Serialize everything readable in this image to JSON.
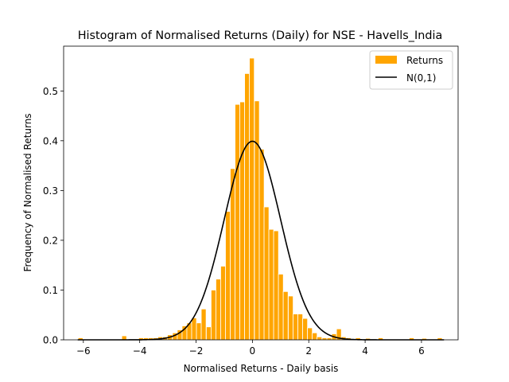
{
  "chart_data": {
    "type": "bar",
    "title": "Histogram of Normalised Returns (Daily) for NSE - Havells_India",
    "xlabel": "Normalised Returns - Daily basis",
    "ylabel": "Frequency of Normalised Returns",
    "xlim": [
      -6.7,
      7.3
    ],
    "ylim": [
      0,
      0.59
    ],
    "xticks": [
      -6,
      -4,
      -2,
      0,
      2,
      4,
      6
    ],
    "yticks": [
      0.0,
      0.1,
      0.2,
      0.3,
      0.4,
      0.5
    ],
    "grid": false,
    "legend_position": "top-right",
    "bar_color": "#ffa500",
    "bar_edge_color": "#ffffff",
    "line_color": "#000000",
    "bin_width": 0.172,
    "series": [
      {
        "name": "Returns",
        "type": "histogram",
        "bin_centers": [
          -6.1,
          -4.55,
          -3.95,
          -3.78,
          -3.61,
          -3.44,
          -3.27,
          -3.1,
          -2.93,
          -2.75,
          -2.58,
          -2.41,
          -2.24,
          -2.07,
          -1.9,
          -1.73,
          -1.55,
          -1.38,
          -1.21,
          -1.04,
          -0.87,
          -0.7,
          -0.53,
          -0.36,
          -0.19,
          -0.02,
          0.16,
          0.33,
          0.5,
          0.67,
          0.84,
          1.01,
          1.18,
          1.36,
          1.53,
          1.7,
          1.87,
          2.04,
          2.21,
          2.38,
          2.56,
          2.73,
          2.9,
          3.07,
          3.24,
          3.41,
          3.75,
          4.1,
          4.55,
          5.65,
          6.1,
          6.65
        ],
        "values": [
          0.004,
          0.008,
          0.004,
          0.004,
          0.004,
          0.004,
          0.006,
          0.006,
          0.01,
          0.014,
          0.02,
          0.028,
          0.034,
          0.044,
          0.034,
          0.062,
          0.026,
          0.1,
          0.122,
          0.148,
          0.258,
          0.344,
          0.473,
          0.478,
          0.535,
          0.566,
          0.48,
          0.383,
          0.267,
          0.222,
          0.219,
          0.132,
          0.097,
          0.088,
          0.052,
          0.052,
          0.043,
          0.024,
          0.014,
          0.006,
          0.004,
          0.004,
          0.012,
          0.022,
          0.006,
          0.004,
          0.004,
          0.003,
          0.004,
          0.004,
          0.003,
          0.004
        ]
      },
      {
        "name": "N(0,1)",
        "type": "line",
        "function": "normal_pdf",
        "mean": 0,
        "std": 1,
        "x_range": [
          -6.2,
          6.8
        ]
      }
    ]
  }
}
